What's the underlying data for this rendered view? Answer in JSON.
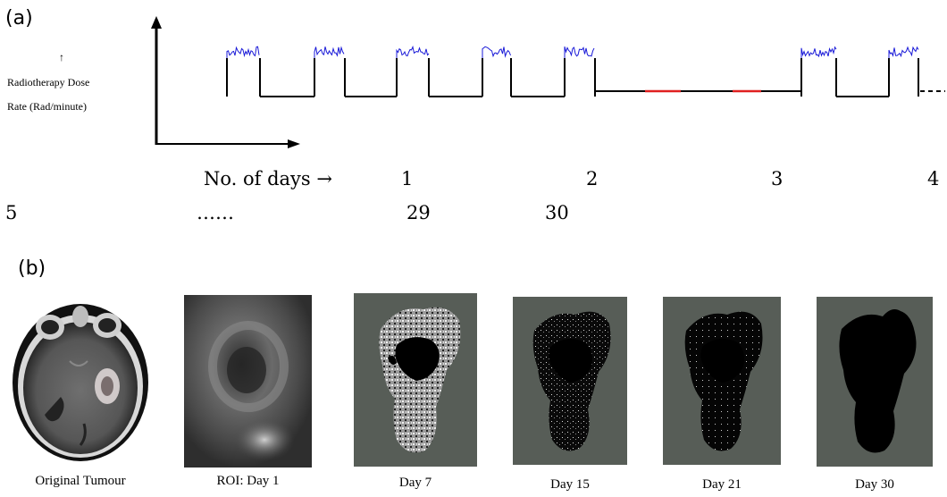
{
  "panel_a": {
    "label": "(a)",
    "y_arrow": "↑",
    "y_label_line1": "Radiotherapy Dose",
    "y_label_line2": "Rate (Rad/minute)",
    "x_caption": "No. of days →",
    "day_ticks": [
      "1",
      "2",
      "3",
      "4"
    ],
    "second_row": [
      "5",
      "……",
      "29",
      "30"
    ],
    "colors": {
      "axis": "#000000",
      "noise": "#1a1ad8",
      "gap": "#e02020",
      "baseline": "#000000"
    }
  },
  "panel_b": {
    "label": "(b)",
    "images": [
      {
        "caption": "Original Tumour",
        "kind": "mri-full-scan"
      },
      {
        "caption": "ROI: Day 1",
        "kind": "mri-roi"
      },
      {
        "caption": "Day 7",
        "kind": "segmented-tumour-light"
      },
      {
        "caption": "Day 15",
        "kind": "segmented-tumour-dark"
      },
      {
        "caption": "Day 21",
        "kind": "segmented-tumour-dark"
      },
      {
        "caption": "Day 30",
        "kind": "segmented-tumour-solid"
      }
    ],
    "colors": {
      "background": "#575d57",
      "tumour": "#000000"
    }
  }
}
